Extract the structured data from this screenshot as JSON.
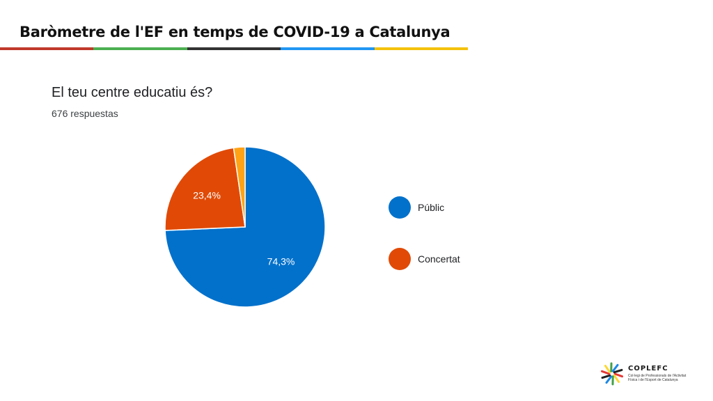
{
  "header": {
    "title": "Baròmetre de l'EF en temps de COVID-19 a Catalunya",
    "rule_colors": [
      "#c0392b",
      "#4caf50",
      "#333333",
      "#2196f3",
      "#f4c20d"
    ]
  },
  "survey": {
    "question": "El teu centre educatiu és?",
    "responses": "676 respuestas"
  },
  "chart_data": {
    "type": "pie",
    "title": "El teu centre educatiu és?",
    "slices": [
      {
        "label": "Públic",
        "value": 74.3,
        "display": "74,3%",
        "color": "#0271CB"
      },
      {
        "label": "Concertat",
        "value": 23.4,
        "display": "23,4%",
        "color": "#E04A06"
      },
      {
        "label": "",
        "value": 2.3,
        "display": "",
        "color": "#FFA215"
      }
    ],
    "start_angle_deg": 90,
    "direction": "clockwise",
    "legend_placement": "right"
  },
  "legend": [
    {
      "label": "Públic",
      "color": "#0271CB"
    },
    {
      "label": "Concertat",
      "color": "#E04A06"
    }
  ],
  "logo": {
    "name": "COPLEFC",
    "subtitle": "Col·legi de Professionals de l'Activitat Física i de l'Esport de Catalunya",
    "colors": [
      "#e53935",
      "#fdd835",
      "#43a047",
      "#1e88e5",
      "#212121"
    ]
  }
}
